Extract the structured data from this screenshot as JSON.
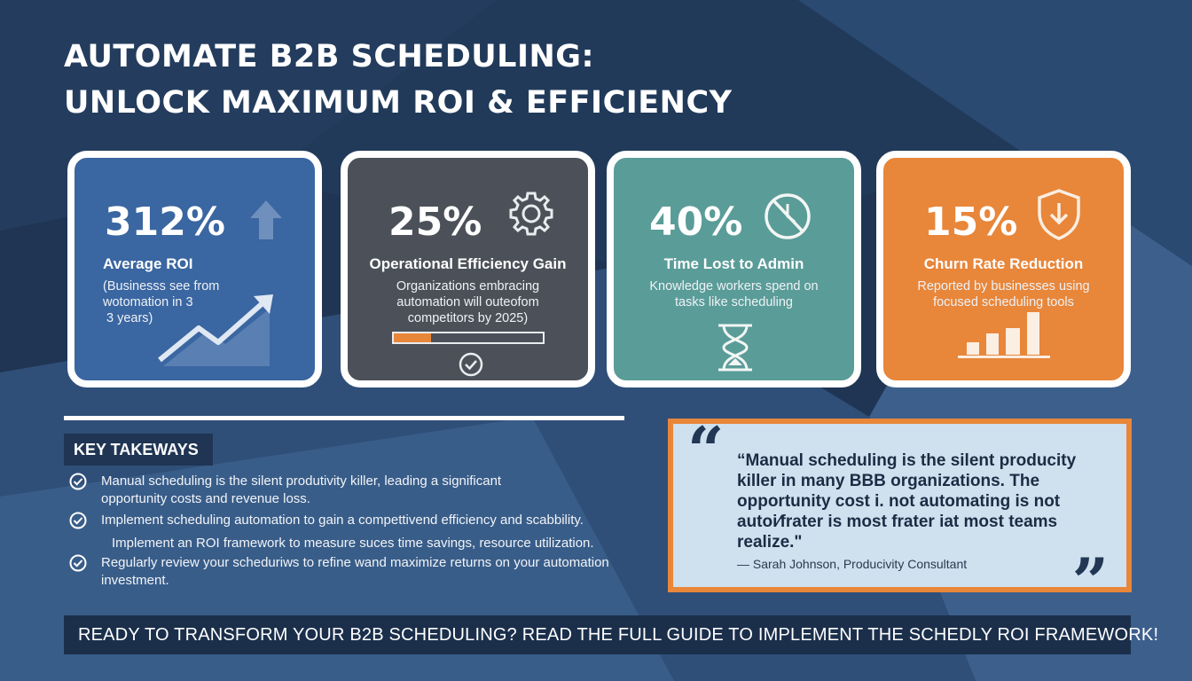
{
  "title": {
    "line1": "AUTOMATE B2B SCHEDULING:",
    "line2": "UNLOCK MAXIMUM ROI & EFFICIENCY"
  },
  "cards": [
    {
      "stat": "312%",
      "label": "Average ROI",
      "desc_lines": [
        "(Businesss see from",
        "wotomation in 3",
        "3 years)"
      ],
      "icon": "arrow-up-icon",
      "color": "#3a66a1"
    },
    {
      "stat": "25%",
      "label": "Operational Efficiency Gain",
      "desc_lines": [
        "Organizations embracing",
        "automation will outeofom",
        "competitors by 2025)"
      ],
      "icon": "gear-icon",
      "progress": 0.25,
      "color": "#4c5159"
    },
    {
      "stat": "40%",
      "label": "Time Lost to Admin",
      "desc_lines": [
        "Knowledge workers spend on",
        "tasks like scheduling"
      ],
      "icon": "no-time-icon",
      "color": "#5a9c98"
    },
    {
      "stat": "15%",
      "label": "Churn Rate Reduction",
      "desc_lines": [
        "Reported by businesses using",
        "focused scheduling tools"
      ],
      "icon": "shield-down-icon",
      "color": "#e8863a"
    }
  ],
  "takeaways": {
    "heading": "KEY TAKEWAYS",
    "items": [
      {
        "text": "Manual scheduling is the silent produtivity killer, leading a significant opportunity costs and revenue loss.",
        "check": true
      },
      {
        "text": "Implement scheduling automation to gain a compettivend efficiency and scabbility.",
        "check": true
      },
      {
        "text": "Implement an ROI framework to measure suces time savings, resource utilization.",
        "check": false
      },
      {
        "text": "Regularly review your scheduriws to refine wand maximize returns on your automation investment.",
        "check": true
      }
    ]
  },
  "quote": {
    "open_mark": "“",
    "close_mark": "”",
    "text": "“Manual scheduling is the silent producity killer in many BBB organizations. The opportunity cost i. not automating is not autoi⁄frater is most frater iat most teams realize.\"",
    "attribution": "— Sarah Johnson, Producivity Consultant"
  },
  "cta": {
    "text": "READY TO TRANSFORM YOUR B2B SCHEDULING? READ THE FULL GUIDE TO IMPLEMENT THE SCHEDLY ROI FRAMEWORK!",
    "icon": "arrow-right-icon"
  },
  "colors": {
    "background": "#1f3553",
    "blue_card": "#3a66a1",
    "gray_card": "#4c5159",
    "teal_card": "#5a9c98",
    "orange_accent": "#e8863a",
    "quote_bg": "#cfe1ef"
  }
}
